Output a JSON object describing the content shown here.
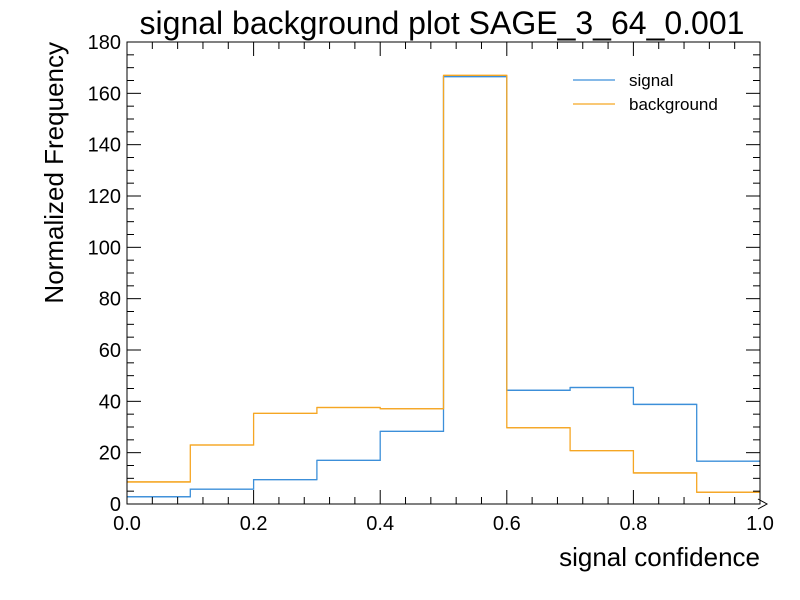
{
  "chart_data": {
    "type": "histogram",
    "title": "signal background plot SAGE_3_64_0.001",
    "xlabel": "signal confidence",
    "ylabel": "Normalized Frequency",
    "xlim": [
      0.0,
      1.0
    ],
    "ylim": [
      0,
      180
    ],
    "x_ticks": [
      "0.0",
      "0.2",
      "0.4",
      "0.6",
      "0.8",
      "1.0"
    ],
    "y_ticks": [
      "0",
      "20",
      "40",
      "60",
      "80",
      "100",
      "120",
      "140",
      "160",
      "180"
    ],
    "bin_edges": [
      0.0,
      0.1,
      0.2,
      0.3,
      0.4,
      0.5,
      0.6,
      0.7,
      0.8,
      0.9,
      1.0
    ],
    "series": [
      {
        "name": "signal",
        "color": "#3c8fd9",
        "values": [
          2.8,
          5.8,
          9.5,
          17.0,
          28.3,
          166.5,
          44.3,
          45.4,
          38.8,
          16.7
        ]
      },
      {
        "name": "background",
        "color": "#f5a623",
        "values": [
          8.6,
          23.0,
          35.3,
          37.6,
          37.1,
          167.0,
          29.7,
          20.8,
          12.1,
          4.6
        ]
      }
    ],
    "legend_position": "top-right",
    "grid": false
  }
}
